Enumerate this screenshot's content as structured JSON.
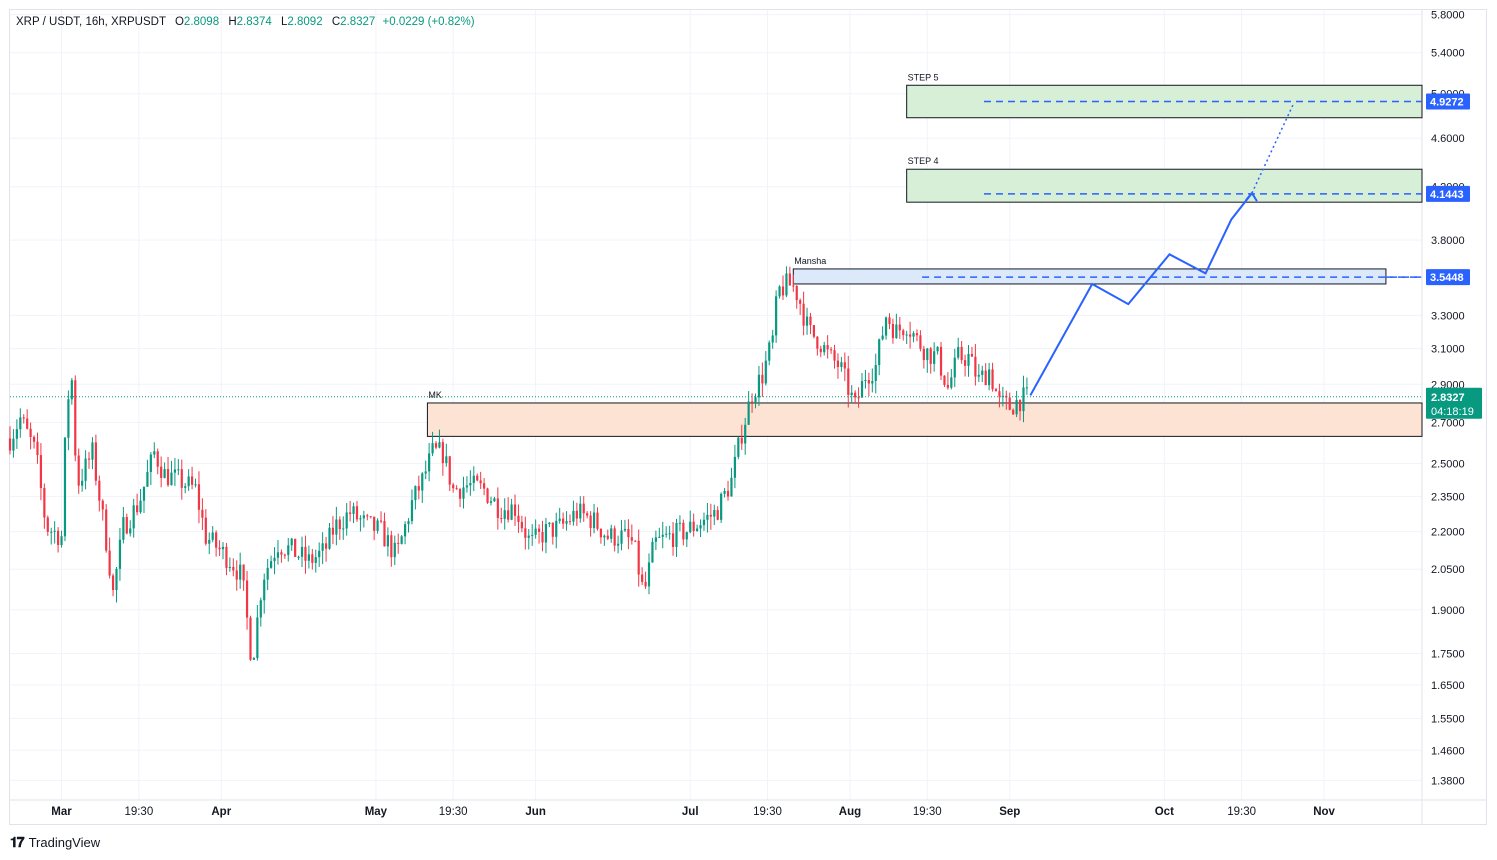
{
  "header": {
    "symbol": "XRP / USDT, 16h, XRPUSDT",
    "open_label": "O",
    "open": "2.8098",
    "high_label": "H",
    "high": "2.8374",
    "low_label": "L",
    "low": "2.8092",
    "close_label": "C",
    "close": "2.8327",
    "change": "+0.0229 (+0.82%)"
  },
  "colors": {
    "up": "#089981",
    "down": "#f23645",
    "projection": "#2962ff",
    "resistance_zone_fill": "#d7eed7",
    "support_zone_fill": "#fde3d3",
    "mansha_zone_fill": "#dce9fb"
  },
  "chart_data": {
    "type": "candlestick",
    "scale": "log",
    "ylim": [
      1.33,
      5.85
    ],
    "y_ticks": [
      1.38,
      1.46,
      1.55,
      1.65,
      1.75,
      1.9,
      2.05,
      2.2,
      2.35,
      2.5,
      2.7,
      2.9,
      3.1,
      3.3,
      3.8,
      4.2,
      4.6,
      5.0,
      5.4,
      5.8
    ],
    "y_tick_labels": [
      "1.3800",
      "1.4600",
      "1.5500",
      "1.6500",
      "1.7500",
      "1.9000",
      "2.0500",
      "2.2000",
      "2.3500",
      "2.5000",
      "2.7000",
      "2.9000",
      "3.1000",
      "3.3000",
      "3.8000",
      "4.2000",
      "4.6000",
      "5.0000",
      "5.4000",
      "5.8000"
    ],
    "x_ticks": [
      "Mar",
      "19:30",
      "Apr",
      "May",
      "19:30",
      "Jun",
      "Jul",
      "19:30",
      "Aug",
      "19:30",
      "Sep",
      "Oct",
      "19:30",
      "Nov"
    ],
    "xlim": [
      "2025-02-19",
      "2025-11-20"
    ],
    "x_tick_dates": [
      "2025-03-01",
      "2025-03-16",
      "2025-04-01",
      "2025-05-01",
      "2025-05-16",
      "2025-06-01",
      "2025-07-01",
      "2025-07-16",
      "2025-08-01",
      "2025-08-16",
      "2025-09-01",
      "2025-10-01",
      "2025-10-16",
      "2025-11-01"
    ],
    "price_path": [
      [
        "2025-02-19",
        2.62
      ],
      [
        "2025-02-21",
        2.72
      ],
      [
        "2025-02-24",
        2.55
      ],
      [
        "2025-02-26",
        2.22
      ],
      [
        "2025-03-01",
        2.18
      ],
      [
        "2025-03-02",
        2.8
      ],
      [
        "2025-03-03",
        2.92
      ],
      [
        "2025-03-04",
        2.4
      ],
      [
        "2025-03-07",
        2.55
      ],
      [
        "2025-03-10",
        2.12
      ],
      [
        "2025-03-11",
        1.96
      ],
      [
        "2025-03-13",
        2.22
      ],
      [
        "2025-03-16",
        2.32
      ],
      [
        "2025-03-19",
        2.55
      ],
      [
        "2025-03-21",
        2.45
      ],
      [
        "2025-03-24",
        2.42
      ],
      [
        "2025-03-27",
        2.38
      ],
      [
        "2025-03-29",
        2.18
      ],
      [
        "2025-04-01",
        2.12
      ],
      [
        "2025-04-03",
        2.08
      ],
      [
        "2025-04-05",
        2.02
      ],
      [
        "2025-04-07",
        1.72
      ],
      [
        "2025-04-09",
        2.02
      ],
      [
        "2025-04-12",
        2.15
      ],
      [
        "2025-04-15",
        2.12
      ],
      [
        "2025-04-18",
        2.08
      ],
      [
        "2025-04-21",
        2.12
      ],
      [
        "2025-04-23",
        2.22
      ],
      [
        "2025-04-26",
        2.28
      ],
      [
        "2025-04-29",
        2.23
      ],
      [
        "2025-05-02",
        2.2
      ],
      [
        "2025-05-05",
        2.1
      ],
      [
        "2025-05-08",
        2.32
      ],
      [
        "2025-05-10",
        2.42
      ],
      [
        "2025-05-12",
        2.55
      ],
      [
        "2025-05-14",
        2.55
      ],
      [
        "2025-05-16",
        2.38
      ],
      [
        "2025-05-19",
        2.4
      ],
      [
        "2025-05-22",
        2.38
      ],
      [
        "2025-05-25",
        2.3
      ],
      [
        "2025-05-28",
        2.3
      ],
      [
        "2025-05-31",
        2.15
      ],
      [
        "2025-06-03",
        2.2
      ],
      [
        "2025-06-06",
        2.22
      ],
      [
        "2025-06-09",
        2.28
      ],
      [
        "2025-06-12",
        2.25
      ],
      [
        "2025-06-15",
        2.18
      ],
      [
        "2025-06-18",
        2.18
      ],
      [
        "2025-06-20",
        2.15
      ],
      [
        "2025-06-22",
        1.95
      ],
      [
        "2025-06-24",
        2.15
      ],
      [
        "2025-06-27",
        2.18
      ],
      [
        "2025-06-30",
        2.2
      ],
      [
        "2025-07-03",
        2.24
      ],
      [
        "2025-07-06",
        2.28
      ],
      [
        "2025-07-09",
        2.42
      ],
      [
        "2025-07-11",
        2.65
      ],
      [
        "2025-07-13",
        2.85
      ],
      [
        "2025-07-15",
        2.95
      ],
      [
        "2025-07-17",
        3.15
      ],
      [
        "2025-07-18",
        3.45
      ],
      [
        "2025-07-20",
        3.5
      ],
      [
        "2025-07-21",
        3.48
      ],
      [
        "2025-07-22",
        3.42
      ],
      [
        "2025-07-24",
        3.2
      ],
      [
        "2025-07-26",
        3.15
      ],
      [
        "2025-07-28",
        3.05
      ],
      [
        "2025-07-30",
        3.0
      ],
      [
        "2025-08-02",
        2.78
      ],
      [
        "2025-08-04",
        2.95
      ],
      [
        "2025-08-06",
        3.0
      ],
      [
        "2025-08-08",
        3.3
      ],
      [
        "2025-08-10",
        3.2
      ],
      [
        "2025-08-12",
        3.25
      ],
      [
        "2025-08-14",
        3.15
      ],
      [
        "2025-08-16",
        3.08
      ],
      [
        "2025-08-18",
        3.05
      ],
      [
        "2025-08-20",
        2.88
      ],
      [
        "2025-08-22",
        3.05
      ],
      [
        "2025-08-24",
        3.05
      ],
      [
        "2025-08-26",
        2.92
      ],
      [
        "2025-08-28",
        2.98
      ],
      [
        "2025-08-30",
        2.8
      ],
      [
        "2025-09-01",
        2.78
      ],
      [
        "2025-09-03",
        2.82
      ],
      [
        "2025-09-05",
        2.83
      ]
    ],
    "zones": [
      {
        "label": "STEP 5",
        "from": "2025-08-12",
        "to": "2025-11-20",
        "low": 4.78,
        "high": 5.08
      },
      {
        "label": "STEP 4",
        "from": "2025-08-12",
        "to": "2025-11-20",
        "low": 4.08,
        "high": 4.34
      },
      {
        "label": "Mansha",
        "from": "2025-07-21",
        "to": "2025-11-13",
        "low": 3.5,
        "high": 3.6
      },
      {
        "label": "MK",
        "from": "2025-05-11",
        "to": "2025-11-20",
        "low": 2.63,
        "high": 2.8
      }
    ],
    "levels": [
      {
        "label": "4.9272",
        "value": 4.9272,
        "from": "2025-08-27"
      },
      {
        "label": "4.1443",
        "value": 4.1443,
        "from": "2025-08-27"
      },
      {
        "label": "3.5448",
        "value": 3.5448,
        "from": "2025-08-15"
      }
    ],
    "projection_path": [
      [
        "2025-09-05",
        2.84
      ],
      [
        "2025-09-17",
        3.5
      ],
      [
        "2025-09-24",
        3.37
      ],
      [
        "2025-10-02",
        3.7
      ],
      [
        "2025-10-09",
        3.57
      ],
      [
        "2025-10-14",
        3.95
      ],
      [
        "2025-10-18",
        4.15
      ]
    ],
    "projection_dotted": [
      [
        "2025-10-18",
        4.15
      ],
      [
        "2025-10-26",
        4.9
      ]
    ],
    "current_price": {
      "value": 2.8327,
      "label": "2.8327",
      "countdown": "04:18:19"
    }
  },
  "footer": {
    "logo_text": "TradingView"
  }
}
